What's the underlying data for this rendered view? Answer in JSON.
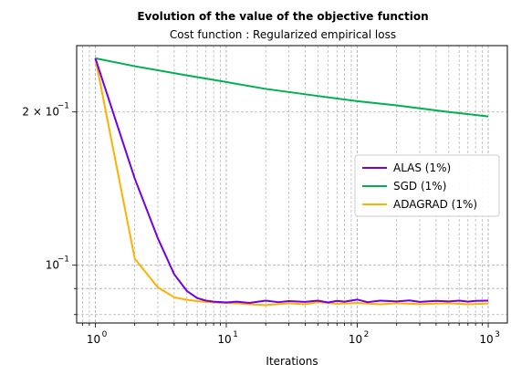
{
  "chart_data": {
    "type": "line",
    "title": "Evolution of the value of the objective function",
    "subtitle": "Cost function : Regularized empirical loss",
    "xlabel": "Iterations",
    "ylabel": "",
    "xscale": "log",
    "yscale": "log",
    "xlim": [
      0.72,
      1400
    ],
    "ylim": [
      0.077,
      0.27
    ],
    "grid": true,
    "legend_position": "center-right",
    "x_ticks": [
      {
        "value": 1,
        "label": "10",
        "exp": "0"
      },
      {
        "value": 10,
        "label": "10",
        "exp": "1"
      },
      {
        "value": 100,
        "label": "10",
        "exp": "2"
      },
      {
        "value": 1000,
        "label": "10",
        "exp": "3"
      }
    ],
    "y_ticks": [
      {
        "value": 0.1,
        "label": "10",
        "exp": "−1"
      },
      {
        "value": 0.2,
        "label": "2 × 10",
        "exp": "−1"
      }
    ],
    "series": [
      {
        "name": "ALAS (1%)",
        "color": "#7100e2",
        "x": [
          1,
          2,
          3,
          4,
          5,
          6,
          7,
          8,
          10,
          12,
          15,
          20,
          25,
          30,
          40,
          50,
          60,
          70,
          80,
          100,
          120,
          150,
          200,
          250,
          300,
          400,
          500,
          600,
          700,
          800,
          1000
        ],
        "y": [
          0.255,
          0.148,
          0.113,
          0.096,
          0.089,
          0.0862,
          0.0852,
          0.0848,
          0.0845,
          0.0848,
          0.0843,
          0.0852,
          0.0846,
          0.085,
          0.0847,
          0.0852,
          0.0845,
          0.0851,
          0.0848,
          0.0856,
          0.0846,
          0.0852,
          0.0849,
          0.0853,
          0.0847,
          0.0851,
          0.0849,
          0.0852,
          0.0848,
          0.0851,
          0.0852
        ]
      },
      {
        "name": "SGD (1%)",
        "color": "#00b050",
        "x": [
          1,
          2,
          5,
          10,
          20,
          50,
          100,
          200,
          500,
          1000
        ],
        "y": [
          0.255,
          0.246,
          0.236,
          0.229,
          0.222,
          0.215,
          0.21,
          0.206,
          0.2,
          0.196
        ]
      },
      {
        "name": "ADAGRAD (1%)",
        "color": "#ffb000",
        "x": [
          1,
          2,
          3,
          4,
          5,
          6,
          8,
          10,
          12,
          15,
          20,
          30,
          40,
          50,
          70,
          100,
          150,
          200,
          300,
          500,
          700,
          1000
        ],
        "y": [
          0.255,
          0.103,
          0.0905,
          0.0865,
          0.0855,
          0.085,
          0.0845,
          0.0843,
          0.0842,
          0.0838,
          0.0835,
          0.0842,
          0.0838,
          0.0846,
          0.084,
          0.0843,
          0.0838,
          0.0842,
          0.0839,
          0.0842,
          0.0838,
          0.0841
        ]
      }
    ]
  }
}
